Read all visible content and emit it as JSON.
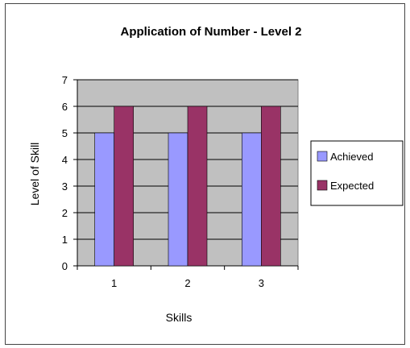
{
  "chart_data": {
    "type": "bar",
    "title": "Application of Number - Level 2",
    "xlabel": "Skills",
    "ylabel": "Level of Skill",
    "categories": [
      "1",
      "2",
      "3"
    ],
    "ylim": [
      0,
      7
    ],
    "yticks": [
      "0",
      "1",
      "2",
      "3",
      "4",
      "5",
      "6",
      "7"
    ],
    "grid": true,
    "legend_position": "right",
    "series": [
      {
        "name": "Achieved",
        "values": [
          5,
          5,
          5
        ],
        "color": "#9999ff"
      },
      {
        "name": "Expected",
        "values": [
          6,
          6,
          6
        ],
        "color": "#993366"
      }
    ],
    "plot_background": "#c0c0c0"
  }
}
